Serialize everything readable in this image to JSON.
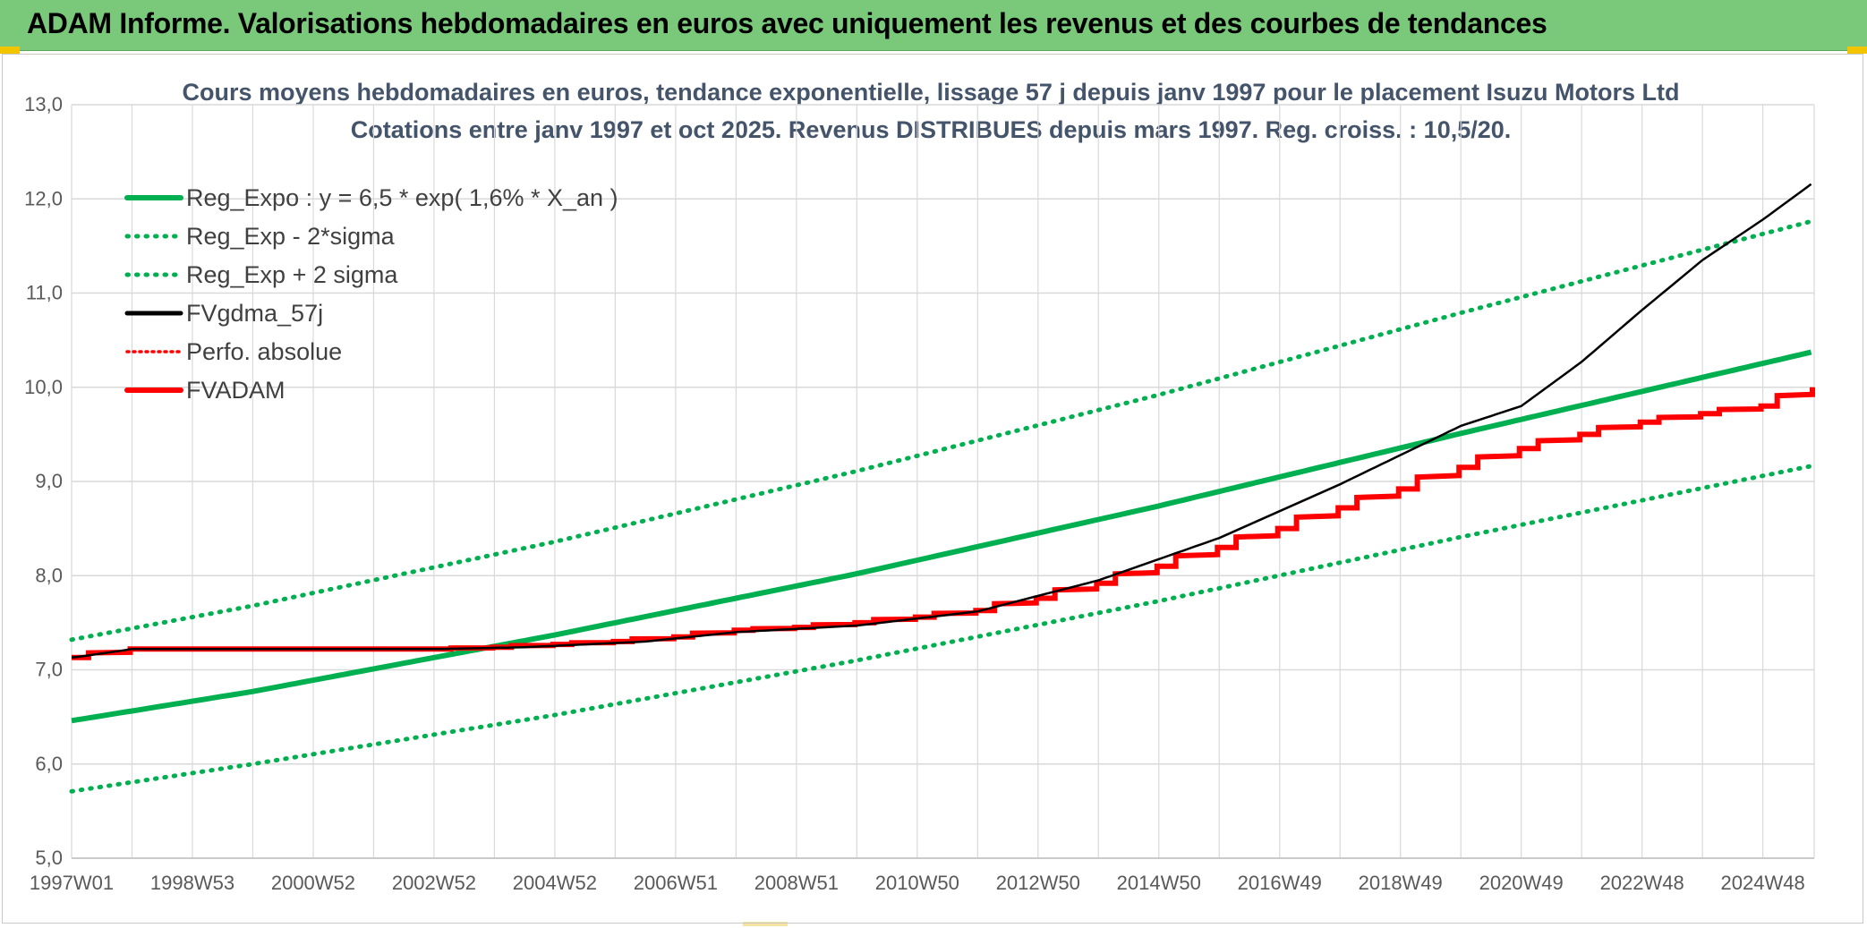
{
  "banner": {
    "title": "ADAM Informe. Valorisations hebdomadaires en euros avec uniquement les revenus et des courbes de tendances"
  },
  "colors": {
    "banner": "#7ac97a",
    "trend": "#00b050",
    "fvgdma": "#000000",
    "fvadam": "#ff0000",
    "perfo": "#ff0000",
    "title": "#44546a",
    "grid": "#d9d9d9"
  },
  "chart_data": {
    "type": "line",
    "title_line1": "Cours moyens hebdomadaires en euros, tendance exponentielle, lissage 57 j depuis janv 1997 pour le placement Isuzu Motors Ltd",
    "title_line2": "Cotations entre janv 1997 et oct 2025. Revenus DISTRIBUES depuis mars 1997. Reg. croiss. : 10,5/20.",
    "xlabel": "",
    "ylabel": "",
    "ylim": [
      5.0,
      13.0
    ],
    "xlim": [
      1997.0,
      2025.85
    ],
    "grid": true,
    "legend_position": "top-left",
    "y_ticks": [
      "5,0",
      "6,0",
      "7,0",
      "8,0",
      "9,0",
      "10,0",
      "11,0",
      "12,0",
      "13,0"
    ],
    "x_tick_labels": [
      "1997W01",
      "1998W53",
      "2000W52",
      "2002W52",
      "2004W52",
      "2006W51",
      "2008W51",
      "2010W50",
      "2012W50",
      "2014W50",
      "2016W49",
      "2018W49",
      "2020W49",
      "2022W48",
      "2024W48"
    ],
    "x_tick_positions": [
      1997.0,
      1999.0,
      2001.0,
      2003.0,
      2005.0,
      2007.0,
      2009.0,
      2011.0,
      2013.0,
      2015.0,
      2017.0,
      2019.0,
      2021.0,
      2023.0,
      2025.0
    ],
    "series": [
      {
        "name": "Reg_Expo : y = 6,5 * exp( 1,6% *  X_an )",
        "style": "solid-thick",
        "color": "#00b050",
        "x": [
          1997.0,
          2000.0,
          2005.0,
          2010.0,
          2015.0,
          2020.0,
          2025.85
        ],
        "values": [
          6.46,
          6.77,
          7.37,
          8.02,
          8.74,
          9.51,
          10.38
        ]
      },
      {
        "name": "Reg_Exp - 2*sigma",
        "style": "dotted",
        "color": "#00b050",
        "x": [
          1997.0,
          2000.0,
          2005.0,
          2010.0,
          2015.0,
          2020.0,
          2025.85
        ],
        "values": [
          5.71,
          6.0,
          6.52,
          7.1,
          7.73,
          8.41,
          9.17
        ]
      },
      {
        "name": "Reg_Exp + 2 sigma",
        "style": "dotted",
        "color": "#00b050",
        "x": [
          1997.0,
          2000.0,
          2005.0,
          2010.0,
          2015.0,
          2020.0,
          2025.85
        ],
        "values": [
          7.32,
          7.68,
          8.36,
          9.11,
          9.92,
          10.79,
          11.77
        ]
      },
      {
        "name": "FVgdma_57j",
        "style": "solid",
        "color": "#000000",
        "x": [
          1997.0,
          1997.25,
          1998.0,
          2003.0,
          2004.5,
          2005.5,
          2006.5,
          2008.0,
          2010.0,
          2012.0,
          2014.0,
          2016.0,
          2018.0,
          2020.0,
          2021.0,
          2022.0,
          2023.0,
          2024.0,
          2025.0,
          2025.85
        ],
        "values": [
          7.13,
          7.15,
          7.22,
          7.22,
          7.24,
          7.27,
          7.3,
          7.4,
          7.47,
          7.62,
          7.95,
          8.4,
          8.97,
          9.59,
          9.8,
          10.27,
          10.82,
          11.35,
          11.78,
          12.18
        ]
      },
      {
        "name": "Perfo. absolue",
        "style": "dotted",
        "color": "#ff0000",
        "x": [],
        "values": []
      },
      {
        "name": "FVADAM",
        "style": "step-thick",
        "color": "#ff0000",
        "step_years": [
          1997.0,
          1998.0,
          1999.0,
          2000.0,
          2001.0,
          2002.0,
          2003.0,
          2004.0,
          2005.0,
          2006.0,
          2007.0,
          2008.0,
          2009.0,
          2010.0,
          2011.0,
          2012.0,
          2013.0,
          2014.0,
          2015.0,
          2016.0,
          2017.0,
          2018.0,
          2019.0,
          2020.0,
          2021.0,
          2022.0,
          2023.0,
          2024.0,
          2025.0,
          2025.85
        ],
        "values": [
          7.13,
          7.22,
          7.22,
          7.22,
          7.22,
          7.22,
          7.22,
          7.24,
          7.27,
          7.3,
          7.35,
          7.42,
          7.45,
          7.5,
          7.56,
          7.63,
          7.76,
          7.92,
          8.1,
          8.3,
          8.5,
          8.72,
          8.92,
          9.15,
          9.35,
          9.5,
          9.63,
          9.72,
          9.8,
          10.0
        ]
      }
    ]
  }
}
